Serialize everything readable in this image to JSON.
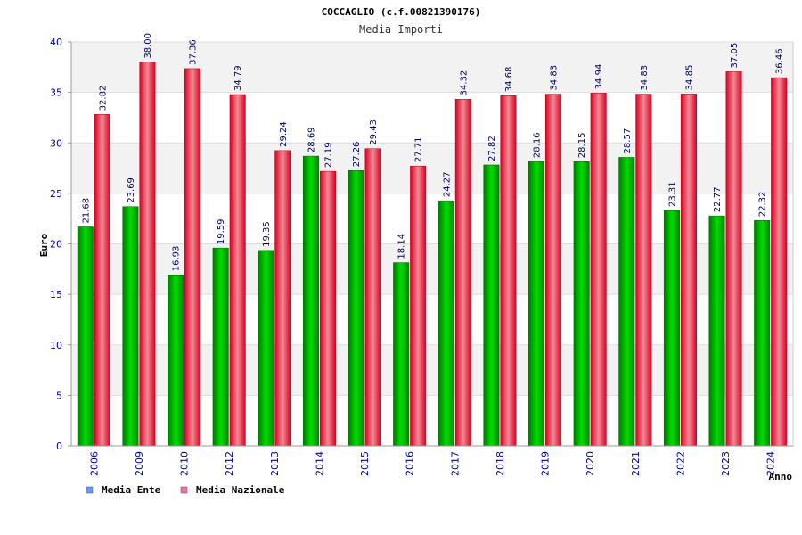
{
  "chart_data": {
    "type": "bar",
    "title": "COCCAGLIO (c.f.00821390176)",
    "subtitle": "Media Importi",
    "xlabel": "Anno",
    "ylabel": "Euro",
    "ylim": [
      0,
      40
    ],
    "yticks": [
      0,
      5,
      10,
      15,
      20,
      25,
      30,
      35,
      40
    ],
    "categories": [
      "2006",
      "2009",
      "2010",
      "2012",
      "2013",
      "2014",
      "2015",
      "2016",
      "2017",
      "2018",
      "2019",
      "2020",
      "2021",
      "2022",
      "2023",
      "2024"
    ],
    "series": [
      {
        "name": "Media Ente",
        "color": "#00cc00",
        "legend_color": "#6699ee",
        "values": [
          21.68,
          23.69,
          16.93,
          19.59,
          19.35,
          28.69,
          27.26,
          18.14,
          24.27,
          27.82,
          28.16,
          28.15,
          28.57,
          23.31,
          22.77,
          22.32
        ],
        "labels": [
          "21.68",
          "23.69",
          "16.93",
          "19.59",
          "19.35",
          "28.69",
          "27.26",
          "18.14",
          "24.27",
          "27.82",
          "28.16",
          "28.15",
          "28.57",
          "23.31",
          "22.77",
          "22.32"
        ]
      },
      {
        "name": "Media Nazionale",
        "color": "#ee1111",
        "legend_color": "#dd77aa",
        "values": [
          32.82,
          38.0,
          37.36,
          34.79,
          29.24,
          27.19,
          29.43,
          27.71,
          34.32,
          34.68,
          34.83,
          34.94,
          34.83,
          34.85,
          37.05,
          36.46
        ],
        "labels": [
          "32.82",
          "38.00",
          "37.36",
          "34.79",
          "29.24",
          "27.19",
          "29.43",
          "27.71",
          "34.32",
          "34.68",
          "34.83",
          "34.94",
          "34.83",
          "34.85",
          "37.05",
          "36.46"
        ]
      }
    ],
    "grid": true,
    "legend_position": "bottom-left"
  }
}
